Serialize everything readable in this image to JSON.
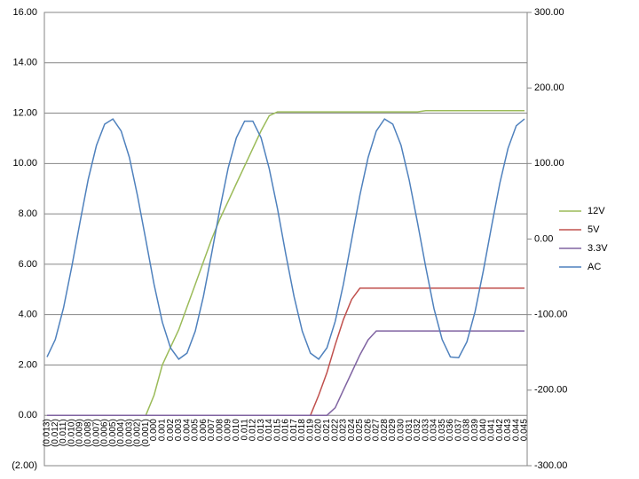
{
  "chart_data": {
    "type": "line",
    "categories": [
      "(0.013)",
      "(0.012)",
      "(0.011)",
      "(0.010)",
      "(0.009)",
      "(0.008)",
      "(0.007)",
      "(0.006)",
      "(0.005)",
      "(0.004)",
      "(0.003)",
      "(0.002)",
      "(0.001)",
      "0.000",
      "0.001",
      "0.002",
      "0.003",
      "0.004",
      "0.005",
      "0.006",
      "0.007",
      "0.008",
      "0.009",
      "0.010",
      "0.011",
      "0.012",
      "0.013",
      "0.014",
      "0.015",
      "0.016",
      "0.017",
      "0.018",
      "0.019",
      "0.020",
      "0.021",
      "0.022",
      "0.023",
      "0.024",
      "0.025",
      "0.026",
      "0.027",
      "0.028",
      "0.029",
      "0.030",
      "0.031",
      "0.032",
      "0.033",
      "0.034",
      "0.035",
      "0.036",
      "0.037",
      "0.038",
      "0.039",
      "0.040",
      "0.041",
      "0.042",
      "0.043",
      "0.044",
      "0.045"
    ],
    "series": [
      {
        "name": "12V",
        "color": "#9bbb59",
        "values": [
          0,
          0,
          0,
          0,
          0,
          0,
          0,
          0,
          0,
          0,
          0,
          0,
          0,
          0.8,
          2.0,
          2.7,
          3.4,
          4.3,
          5.2,
          6.1,
          7.0,
          7.8,
          8.5,
          9.2,
          9.9,
          10.6,
          11.3,
          11.9,
          12.05,
          12.05,
          12.05,
          12.05,
          12.05,
          12.05,
          12.05,
          12.05,
          12.05,
          12.05,
          12.05,
          12.05,
          12.05,
          12.05,
          12.05,
          12.05,
          12.05,
          12.05,
          12.1,
          12.1,
          12.1,
          12.1,
          12.1,
          12.1,
          12.1,
          12.1,
          12.1,
          12.1,
          12.1,
          12.1,
          12.1
        ]
      },
      {
        "name": "5V",
        "color": "#c0504d",
        "values": [
          0,
          0,
          0,
          0,
          0,
          0,
          0,
          0,
          0,
          0,
          0,
          0,
          0,
          0,
          0,
          0,
          0,
          0,
          0,
          0,
          0,
          0,
          0,
          0,
          0,
          0,
          0,
          0,
          0,
          0,
          0,
          0,
          0,
          0.8,
          1.7,
          2.8,
          3.8,
          4.6,
          5.05,
          5.05,
          5.05,
          5.05,
          5.05,
          5.05,
          5.05,
          5.05,
          5.05,
          5.05,
          5.05,
          5.05,
          5.05,
          5.05,
          5.05,
          5.05,
          5.05,
          5.05,
          5.05,
          5.05,
          5.05
        ]
      },
      {
        "name": "3.3V",
        "color": "#8064a2",
        "values": [
          0,
          0,
          0,
          0,
          0,
          0,
          0,
          0,
          0,
          0,
          0,
          0,
          0,
          0,
          0,
          0,
          0,
          0,
          0,
          0,
          0,
          0,
          0,
          0,
          0,
          0,
          0,
          0,
          0,
          0,
          0,
          0,
          0,
          0,
          0,
          0.3,
          1.0,
          1.7,
          2.4,
          3.0,
          3.35,
          3.35,
          3.35,
          3.35,
          3.35,
          3.35,
          3.35,
          3.35,
          3.35,
          3.35,
          3.35,
          3.35,
          3.35,
          3.35,
          3.35,
          3.35,
          3.35,
          3.35,
          3.35
        ]
      },
      {
        "name": "AC",
        "color": "#4f81bd",
        "axis": "y2",
        "values": [
          -156,
          -133,
          -91,
          -37,
          22,
          79,
          124,
          152,
          159,
          143,
          108,
          57,
          -1,
          -60,
          -110,
          -144,
          -159,
          -151,
          -122,
          -76,
          -19,
          40,
          94,
          134,
          156,
          156,
          134,
          93,
          40,
          -20,
          -76,
          -122,
          -151,
          -159,
          -144,
          -109,
          -60,
          -1,
          58,
          108,
          143,
          159,
          152,
          124,
          78,
          22,
          -37,
          -92,
          -133,
          -156,
          -157,
          -136,
          -96,
          -42,
          17,
          74,
          120,
          150,
          159
        ]
      }
    ],
    "ylim": [
      -2,
      16
    ],
    "yticks": [
      {
        "value": -2,
        "label": "(2.00)"
      },
      {
        "value": 0,
        "label": "0.00"
      },
      {
        "value": 2,
        "label": "2.00"
      },
      {
        "value": 4,
        "label": "4.00"
      },
      {
        "value": 6,
        "label": "6.00"
      },
      {
        "value": 8,
        "label": "8.00"
      },
      {
        "value": 10,
        "label": "10.00"
      },
      {
        "value": 12,
        "label": "12.00"
      },
      {
        "value": 14,
        "label": "14.00"
      },
      {
        "value": 16,
        "label": "16.00"
      }
    ],
    "y2lim": [
      -300,
      300
    ],
    "y2ticks": [
      {
        "value": -300,
        "label": "-300.00"
      },
      {
        "value": -200,
        "label": "-200.00"
      },
      {
        "value": -100,
        "label": "-100.00"
      },
      {
        "value": 0,
        "label": "0.00"
      },
      {
        "value": 100,
        "label": "100.00"
      },
      {
        "value": 200,
        "label": "200.00"
      },
      {
        "value": 300,
        "label": "300.00"
      }
    ],
    "grid": true,
    "legend": "right"
  }
}
